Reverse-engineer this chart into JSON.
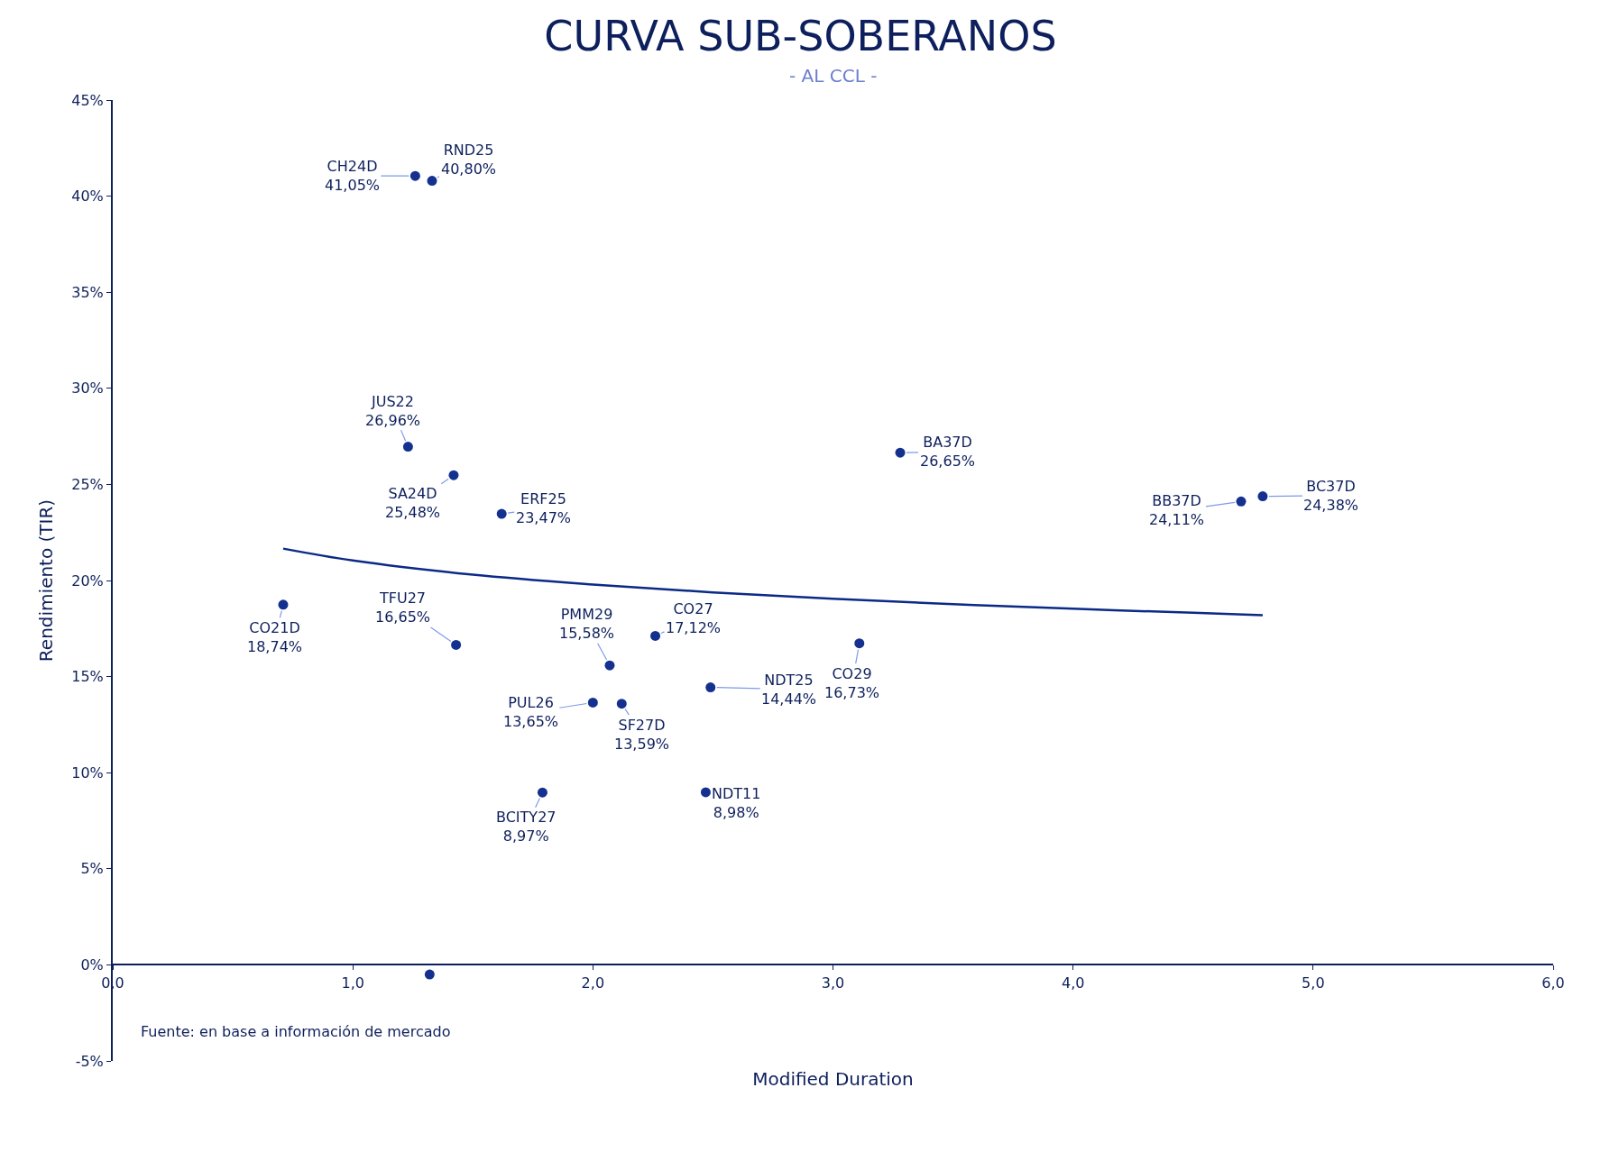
{
  "chart_data": {
    "type": "scatter",
    "title": "CURVA SUB-SOBERANOS",
    "subtitle": "- AL CCL -",
    "xlabel": "Modified Duration",
    "ylabel": "Rendimiento (TIR)",
    "annotations": [
      "Fuente: en base a información de mercado"
    ],
    "xlim": [
      0,
      6
    ],
    "ylim": [
      -5,
      45
    ],
    "xticks": [
      {
        "value": 0,
        "label": "0,0"
      },
      {
        "value": 1,
        "label": "1,0"
      },
      {
        "value": 2,
        "label": "2,0"
      },
      {
        "value": 3,
        "label": "3,0"
      },
      {
        "value": 4,
        "label": "4,0"
      },
      {
        "value": 5,
        "label": "5,0"
      },
      {
        "value": 6,
        "label": "6,0"
      }
    ],
    "yticks": [
      {
        "value": -5,
        "label": "-5%"
      },
      {
        "value": 0,
        "label": "0%"
      },
      {
        "value": 5,
        "label": "5%"
      },
      {
        "value": 10,
        "label": "10%"
      },
      {
        "value": 15,
        "label": "15%"
      },
      {
        "value": 20,
        "label": "20%"
      },
      {
        "value": 25,
        "label": "25%"
      },
      {
        "value": 30,
        "label": "30%"
      },
      {
        "value": 35,
        "label": "35%"
      },
      {
        "value": 40,
        "label": "40%"
      },
      {
        "value": 45,
        "label": "45%"
      }
    ],
    "legend": false,
    "marker": "circle",
    "series": [
      {
        "color": "#14318f",
        "x": [
          1.26,
          1.33,
          1.23,
          1.42,
          1.62,
          0.71,
          1.43,
          2.07,
          2.26,
          2.0,
          2.12,
          2.49,
          3.11,
          3.28,
          4.7,
          4.79,
          1.79,
          2.47,
          1.32
        ],
        "values": [
          41.05,
          40.8,
          26.96,
          25.48,
          23.47,
          18.74,
          16.65,
          15.58,
          17.12,
          13.65,
          13.59,
          14.44,
          16.73,
          26.65,
          24.11,
          24.38,
          8.97,
          8.98,
          -0.5
        ],
        "value_labels": [
          "CH24D\n41,05%",
          "RND25\n40,80%",
          "JUS22\n26,96%",
          "SA24D\n25,48%",
          "ERF25\n23,47%",
          "CO21D\n18,74%",
          "TFU27\n16,65%",
          "PMM29\n15,58%",
          "CO27\n17,12%",
          "PUL26\n13,65%",
          "SF27D\n13,59%",
          "NDT25\n14,44%",
          "CO29\n16,73%",
          "BA37D\n26,65%",
          "BB37D\n24,11%",
          "BC37D\n24,38%",
          "BCITY27\n8,97%",
          "NDT11\n8,98%",
          null
        ]
      },
      {
        "type": "line",
        "marker": "none",
        "color": "#0b2a86",
        "x": [
          0.71,
          1.0,
          1.5,
          2.0,
          2.5,
          3.0,
          3.5,
          4.0,
          4.5,
          4.79
        ],
        "values": [
          21.66,
          21.04,
          20.3,
          19.79,
          19.38,
          19.05,
          18.77,
          18.53,
          18.32,
          18.2
        ]
      }
    ]
  }
}
